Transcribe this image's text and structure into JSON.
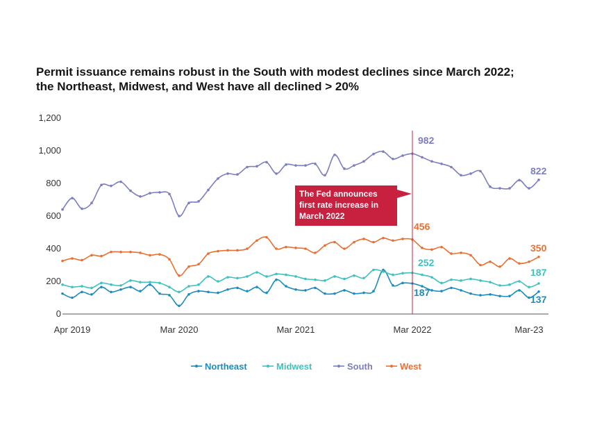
{
  "title_line1": "Permit issuance remains robust in the South with modest declines since March 2022;",
  "title_line2": "the Northeast, Midwest, and West have all declined > 20%",
  "chart_data": {
    "type": "line",
    "title": "Permit issuance remains robust in the South with modest declines since March 2022; the Northeast, Midwest, and West have all declined > 20%",
    "xlabel": "",
    "ylabel": "",
    "ylim": [
      0,
      1200
    ],
    "grid": false,
    "legend_position": "bottom",
    "y_ticks": [
      "0",
      "200",
      "400",
      "600",
      "800",
      "1,000",
      "1,200"
    ],
    "x_tick_labels": [
      {
        "label": "Apr 2019",
        "index": 1
      },
      {
        "label": "Mar 2020",
        "index": 12
      },
      {
        "label": "Mar 2021",
        "index": 24
      },
      {
        "label": "Mar 2022",
        "index": 36
      },
      {
        "label": "Mar-23",
        "index": 48
      }
    ],
    "x_start": "Mar 2019",
    "x_end": "Apr 2023",
    "series": [
      {
        "name": "Northeast",
        "color": "#1a8cbf",
        "end_label": "137",
        "values": [
          125,
          100,
          135,
          120,
          165,
          135,
          150,
          165,
          140,
          180,
          125,
          115,
          50,
          120,
          140,
          135,
          130,
          150,
          160,
          140,
          165,
          130,
          210,
          170,
          150,
          145,
          160,
          125,
          125,
          145,
          125,
          130,
          140,
          270,
          175,
          190,
          187,
          170,
          145,
          140,
          160,
          145,
          125,
          115,
          120,
          110,
          110,
          145,
          100,
          137
        ]
      },
      {
        "name": "Midwest",
        "color": "#3ec1bf",
        "end_label": "187",
        "values": [
          180,
          165,
          170,
          160,
          190,
          180,
          175,
          205,
          195,
          195,
          190,
          165,
          135,
          170,
          180,
          230,
          200,
          225,
          220,
          230,
          255,
          230,
          245,
          240,
          230,
          215,
          210,
          205,
          230,
          215,
          235,
          220,
          270,
          260,
          240,
          250,
          252,
          240,
          225,
          190,
          210,
          205,
          215,
          205,
          195,
          175,
          180,
          200,
          165,
          187
        ]
      },
      {
        "name": "South",
        "color": "#7b7ec0",
        "end_label": "822",
        "values": [
          640,
          710,
          645,
          680,
          790,
          785,
          810,
          755,
          720,
          740,
          745,
          735,
          600,
          680,
          690,
          760,
          830,
          860,
          855,
          900,
          905,
          930,
          860,
          915,
          910,
          910,
          920,
          850,
          975,
          890,
          910,
          935,
          980,
          995,
          950,
          970,
          982,
          960,
          935,
          920,
          900,
          850,
          860,
          875,
          780,
          770,
          770,
          820,
          770,
          822
        ]
      },
      {
        "name": "West",
        "color": "#ea6f32",
        "end_label": "350",
        "values": [
          325,
          340,
          330,
          360,
          355,
          380,
          380,
          380,
          375,
          360,
          365,
          335,
          235,
          290,
          305,
          370,
          385,
          390,
          390,
          400,
          450,
          470,
          400,
          410,
          405,
          400,
          375,
          420,
          440,
          400,
          440,
          460,
          440,
          465,
          450,
          460,
          456,
          405,
          395,
          410,
          370,
          375,
          360,
          300,
          320,
          290,
          340,
          310,
          320,
          350
        ]
      }
    ],
    "annotations": [
      {
        "text_lines": [
          "The Fed announces",
          "first rate increase in",
          "March 2022"
        ],
        "at_index": 36,
        "color": "#c8213f"
      }
    ]
  }
}
